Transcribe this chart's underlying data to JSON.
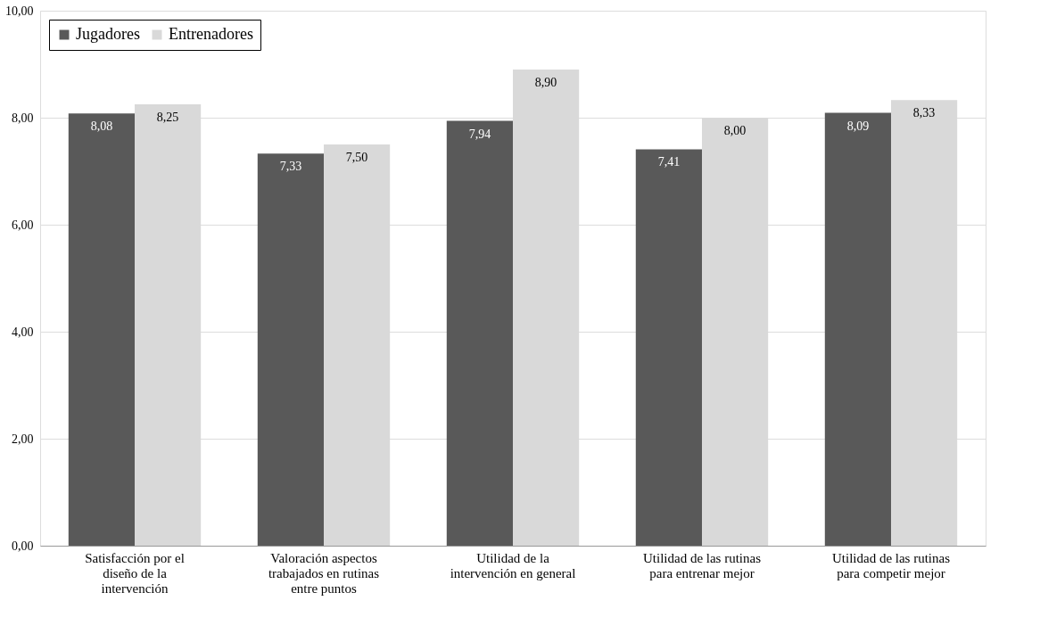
{
  "chart_data": {
    "type": "bar",
    "categories": [
      "Satisfacción por el diseño de la intervención",
      "Valoración aspectos trabajados en rutinas entre puntos",
      "Utilidad de la intervención en general",
      "Utilidad de las rutinas para entrenar mejor",
      "Utilidad de las rutinas para competir mejor"
    ],
    "series": [
      {
        "name": "Jugadores",
        "color": "#595959",
        "values": [
          8.08,
          7.33,
          7.94,
          7.41,
          8.09
        ],
        "value_labels": [
          "8,08",
          "7,33",
          "7,94",
          "7,41",
          "8,09"
        ]
      },
      {
        "name": "Entrenadores",
        "color": "#d9d9d9",
        "values": [
          8.25,
          7.5,
          8.9,
          8.0,
          8.33
        ],
        "value_labels": [
          "8,25",
          "7,50",
          "8,90",
          "8,00",
          "8,33"
        ]
      }
    ],
    "ylim": [
      0,
      10
    ],
    "yticks": [
      {
        "value": 0,
        "label": "0,00"
      },
      {
        "value": 2,
        "label": "2,00"
      },
      {
        "value": 4,
        "label": "4,00"
      },
      {
        "value": 6,
        "label": "6,00"
      },
      {
        "value": 8,
        "label": "8,00"
      },
      {
        "value": 10,
        "label": "10,00"
      }
    ],
    "grid": "y",
    "legend": "top left"
  }
}
